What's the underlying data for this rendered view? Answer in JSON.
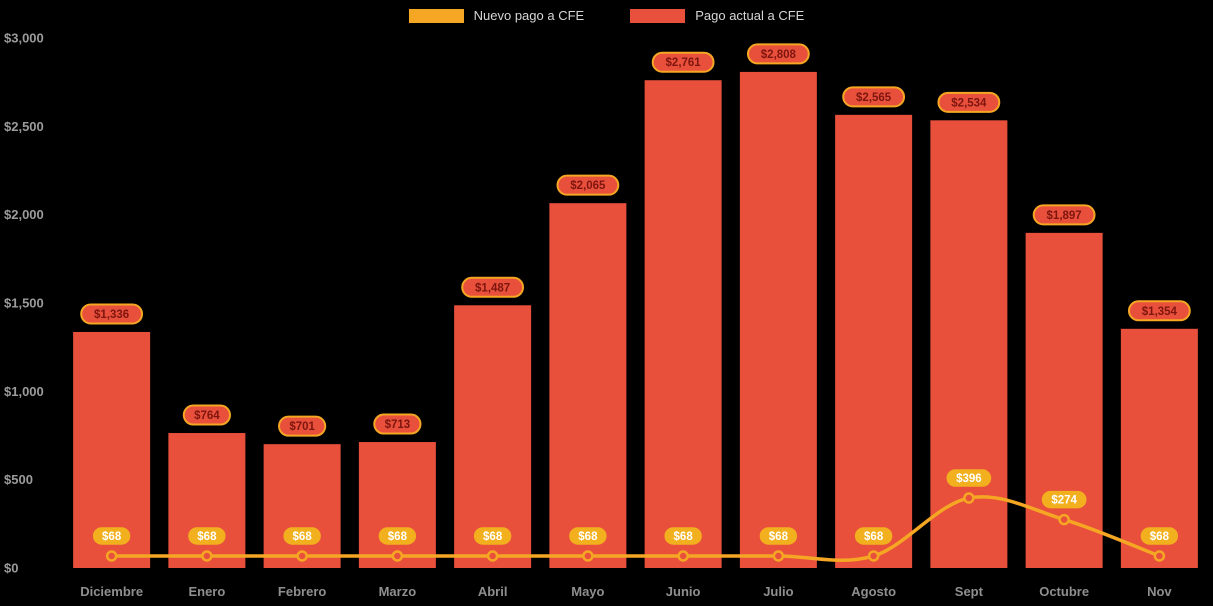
{
  "chart_data": {
    "type": "bar",
    "categories": [
      "Diciembre",
      "Enero",
      "Febrero",
      "Marzo",
      "Abril",
      "Mayo",
      "Junio",
      "Julio",
      "Agosto",
      "Sept",
      "Octubre",
      "Nov"
    ],
    "series": [
      {
        "name": "Nuevo pago a CFE",
        "kind": "line",
        "color": "#f5a623",
        "values": [
          68,
          68,
          68,
          68,
          68,
          68,
          68,
          68,
          68,
          396,
          274,
          68
        ],
        "labels": [
          "$68",
          "$68",
          "$68",
          "$68",
          "$68",
          "$68",
          "$68",
          "$68",
          "$68",
          "$396",
          "$274",
          "$68"
        ]
      },
      {
        "name": "Pago actual a CFE",
        "kind": "bar",
        "color": "#e8503c",
        "values": [
          1336,
          764,
          701,
          713,
          1487,
          2065,
          2761,
          2808,
          2565,
          2534,
          1897,
          1354
        ],
        "labels": [
          "$1,336",
          "$764",
          "$701",
          "$713",
          "$1,487",
          "$2,065",
          "$2,761",
          "$2,808",
          "$2,565",
          "$2,534",
          "$1,897",
          "$1,354"
        ]
      }
    ],
    "title": "",
    "xlabel": "",
    "ylabel": "",
    "ylim": [
      0,
      3000
    ],
    "yticks": [
      0,
      500,
      1000,
      1500,
      2000,
      2500,
      3000
    ],
    "ytick_labels": [
      "$0",
      "$500",
      "$1,000",
      "$1,500",
      "$2,000",
      "$2,500",
      "$3,000"
    ],
    "grid": false,
    "legend_position": "top",
    "colors": {
      "background": "#000000",
      "bar": "#e8503c",
      "line": "#f5a623",
      "bar_label_fill": "#e8503c",
      "bar_label_border": "#f5a623",
      "bar_label_text": "#7e150e",
      "line_label_fill": "#f2b01e",
      "line_label_border": "#e8503c",
      "line_label_text": "#ffffff",
      "marker_fill": "#e8503c",
      "marker_stroke": "#f5a623",
      "axis_text": "#9b9b9b",
      "month_text": "#8f8f8f",
      "legend_text": "#d6d6d6"
    }
  }
}
